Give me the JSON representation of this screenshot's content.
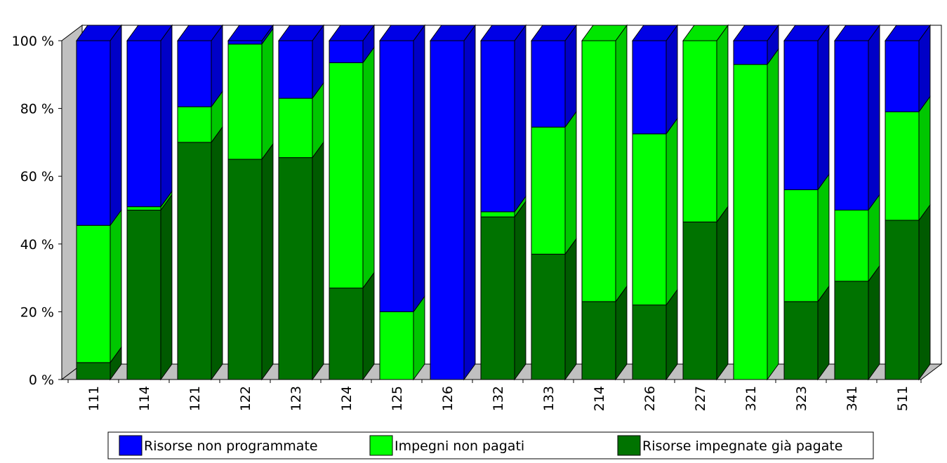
{
  "chart_data": {
    "type": "bar",
    "stacked": true,
    "three_d": true,
    "categories": [
      "111",
      "114",
      "121",
      "122",
      "123",
      "124",
      "125",
      "126",
      "132",
      "133",
      "214",
      "226",
      "227",
      "321",
      "323",
      "341",
      "511"
    ],
    "series": [
      {
        "name": "Risorse impegnate già pagate",
        "color": "#007300",
        "values": [
          5,
          50,
          70,
          65,
          65.5,
          27,
          0,
          0,
          48,
          37,
          23,
          22,
          46.5,
          0,
          23,
          29,
          47
        ]
      },
      {
        "name": "Impegni non pagati",
        "color": "#00FF00",
        "values": [
          40.5,
          1,
          10.5,
          34,
          17.5,
          66.5,
          20,
          0,
          1.5,
          37.5,
          77,
          50.5,
          53.5,
          93,
          33,
          21,
          32
        ]
      },
      {
        "name": "Risorse non programmate",
        "color": "#0000FF",
        "values": [
          54.5,
          49,
          19.5,
          1,
          17,
          6.5,
          80,
          100,
          50.5,
          25.5,
          0,
          27.5,
          0,
          7,
          44,
          50,
          21
        ]
      }
    ],
    "ylim": [
      0,
      100
    ],
    "yticks": [
      "0 %",
      "20 %",
      "40 %",
      "60 %",
      "80 %",
      "100 %"
    ],
    "grid": false,
    "legend_position": "bottom",
    "legend": [
      "Risorse non programmate",
      "Impegni non pagati",
      "Risorse impegnate già pagate"
    ]
  }
}
